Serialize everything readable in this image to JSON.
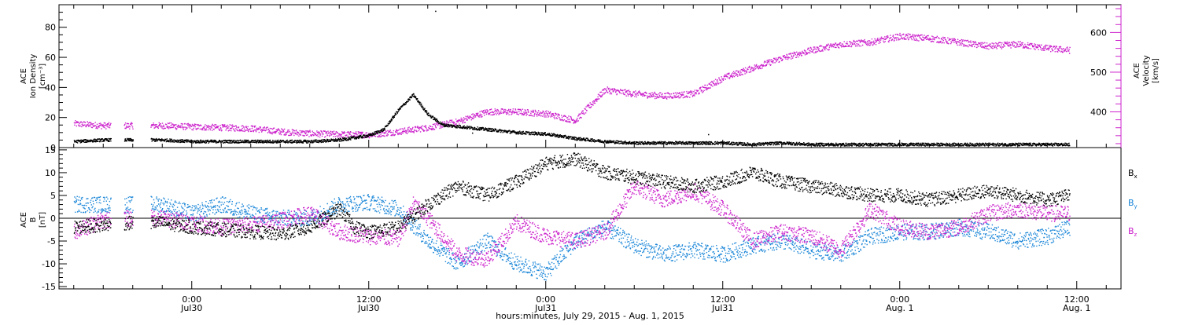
{
  "chart_data": [
    {
      "type": "scatter",
      "panel": "top",
      "ylabel_left": [
        "ACE",
        "Ion Density",
        "[cm⁻³]"
      ],
      "ylabel_right": [
        "ACE",
        "Velocity",
        "[km/s]"
      ],
      "y_left_ticks": [
        "0",
        "20",
        "40",
        "60",
        "80"
      ],
      "y_left_lim": [
        0,
        95
      ],
      "y_right_ticks": [
        "400",
        "500",
        "600"
      ],
      "y_right_lim": [
        310,
        670
      ],
      "colors": {
        "density": "#000000",
        "velocity": "#cc22cc"
      },
      "series": [
        {
          "name": "Ion Density",
          "axis": "left",
          "points": [
            [
              -8,
              4
            ],
            [
              -6,
              5
            ],
            [
              -4,
              5
            ],
            [
              -2,
              5
            ],
            [
              0,
              4
            ],
            [
              2,
              4
            ],
            [
              4,
              4
            ],
            [
              6,
              4
            ],
            [
              8,
              4
            ],
            [
              10,
              5
            ],
            [
              12,
              8
            ],
            [
              13,
              12
            ],
            [
              14,
              25
            ],
            [
              15,
              35
            ],
            [
              16,
              22
            ],
            [
              17,
              15
            ],
            [
              18,
              14
            ],
            [
              20,
              12
            ],
            [
              22,
              10
            ],
            [
              24,
              9
            ],
            [
              26,
              6
            ],
            [
              28,
              4
            ],
            [
              30,
              3
            ],
            [
              34,
              3
            ],
            [
              36,
              3
            ],
            [
              38,
              2
            ],
            [
              40,
              3
            ],
            [
              42,
              2
            ],
            [
              44,
              2
            ],
            [
              46,
              2
            ],
            [
              48,
              2
            ],
            [
              50,
              2
            ],
            [
              52,
              2
            ],
            [
              54,
              2
            ],
            [
              56,
              2
            ],
            [
              58,
              2
            ],
            [
              59.5,
              2
            ]
          ],
          "outliers": [
            [
              16.5,
              91
            ],
            [
              19,
              10
            ],
            [
              35,
              9
            ]
          ]
        },
        {
          "name": "Velocity",
          "axis": "right",
          "points": [
            [
              -8,
              370
            ],
            [
              -6,
              365
            ],
            [
              -4,
              365
            ],
            [
              -2,
              365
            ],
            [
              0,
              362
            ],
            [
              2,
              360
            ],
            [
              4,
              358
            ],
            [
              6,
              350
            ],
            [
              8,
              345
            ],
            [
              10,
              343
            ],
            [
              12,
              342
            ],
            [
              14,
              350
            ],
            [
              16,
              360
            ],
            [
              18,
              375
            ],
            [
              20,
              400
            ],
            [
              22,
              400
            ],
            [
              24,
              395
            ],
            [
              26,
              378
            ],
            [
              28,
              455
            ],
            [
              30,
              445
            ],
            [
              32,
              440
            ],
            [
              34,
              445
            ],
            [
              36,
              485
            ],
            [
              38,
              510
            ],
            [
              40,
              535
            ],
            [
              42,
              555
            ],
            [
              44,
              570
            ],
            [
              46,
              575
            ],
            [
              48,
              590
            ],
            [
              50,
              585
            ],
            [
              52,
              575
            ],
            [
              54,
              565
            ],
            [
              56,
              570
            ],
            [
              58,
              560
            ],
            [
              59.5,
              555
            ]
          ]
        }
      ]
    },
    {
      "type": "scatter",
      "panel": "bottom",
      "ylabel": [
        "ACE",
        "B",
        "[nT]"
      ],
      "y_ticks": [
        "-15",
        "-10",
        "-5",
        "0",
        "5",
        "10",
        "15"
      ],
      "y_lim": [
        -15.5,
        15.5
      ],
      "legend": [
        {
          "label": "B",
          "sub": "x",
          "color": "#000000"
        },
        {
          "label": "B",
          "sub": "y",
          "color": "#1a86d8"
        },
        {
          "label": "B",
          "sub": "z",
          "color": "#cc22cc"
        }
      ],
      "series": [
        {
          "name": "Bx",
          "points": [
            [
              -8,
              -2
            ],
            [
              -6,
              -1.5
            ],
            [
              -4,
              -1
            ],
            [
              -2,
              -1
            ],
            [
              0,
              -2
            ],
            [
              2,
              -2.5
            ],
            [
              4,
              -3
            ],
            [
              6,
              -3.5
            ],
            [
              8,
              -2
            ],
            [
              10,
              2
            ],
            [
              11,
              -2
            ],
            [
              12,
              -3
            ],
            [
              14,
              -2
            ],
            [
              16,
              3
            ],
            [
              18,
              7
            ],
            [
              20,
              5
            ],
            [
              22,
              8
            ],
            [
              24,
              12
            ],
            [
              26,
              13
            ],
            [
              28,
              10
            ],
            [
              30,
              9
            ],
            [
              32,
              8
            ],
            [
              34,
              7
            ],
            [
              36,
              8
            ],
            [
              38,
              10
            ],
            [
              40,
              8
            ],
            [
              42,
              7
            ],
            [
              44,
              6
            ],
            [
              46,
              5
            ],
            [
              48,
              5
            ],
            [
              50,
              4
            ],
            [
              52,
              5
            ],
            [
              54,
              6
            ],
            [
              56,
              5
            ],
            [
              58,
              4
            ],
            [
              59.5,
              5
            ]
          ]
        },
        {
          "name": "By",
          "points": [
            [
              -8,
              3
            ],
            [
              -6,
              3
            ],
            [
              -4,
              3
            ],
            [
              -2,
              3
            ],
            [
              0,
              1
            ],
            [
              2,
              3
            ],
            [
              4,
              1
            ],
            [
              6,
              0
            ],
            [
              8,
              0
            ],
            [
              10,
              3
            ],
            [
              12,
              3.5
            ],
            [
              14,
              2
            ],
            [
              16,
              -5
            ],
            [
              18,
              -10
            ],
            [
              20,
              -5
            ],
            [
              22,
              -10
            ],
            [
              24,
              -12
            ],
            [
              26,
              -5
            ],
            [
              28,
              -2
            ],
            [
              30,
              -6
            ],
            [
              32,
              -8
            ],
            [
              34,
              -7
            ],
            [
              36,
              -8
            ],
            [
              38,
              -6
            ],
            [
              40,
              -5
            ],
            [
              42,
              -7
            ],
            [
              44,
              -8
            ],
            [
              46,
              -4
            ],
            [
              48,
              -3
            ],
            [
              50,
              -3
            ],
            [
              52,
              -2
            ],
            [
              54,
              -3
            ],
            [
              56,
              -5
            ],
            [
              58,
              -4
            ],
            [
              59.5,
              -2
            ]
          ]
        },
        {
          "name": "Bz",
          "points": [
            [
              -8,
              -3
            ],
            [
              -6,
              -0.5
            ],
            [
              -4,
              0
            ],
            [
              -2,
              0
            ],
            [
              0,
              -1
            ],
            [
              2,
              -2
            ],
            [
              4,
              -1.5
            ],
            [
              6,
              -0.5
            ],
            [
              8,
              1
            ],
            [
              10,
              -3
            ],
            [
              12,
              -4
            ],
            [
              14,
              -4.5
            ],
            [
              15,
              3
            ],
            [
              16,
              0
            ],
            [
              18,
              -8
            ],
            [
              20,
              -9
            ],
            [
              22,
              -1
            ],
            [
              24,
              -4
            ],
            [
              26,
              -5
            ],
            [
              28,
              -3
            ],
            [
              30,
              7
            ],
            [
              32,
              4
            ],
            [
              34,
              6
            ],
            [
              36,
              2
            ],
            [
              38,
              -5
            ],
            [
              40,
              -3
            ],
            [
              42,
              -4
            ],
            [
              44,
              -7
            ],
            [
              46,
              2
            ],
            [
              48,
              -2
            ],
            [
              50,
              -3
            ],
            [
              52,
              -2
            ],
            [
              54,
              1
            ],
            [
              56,
              2
            ],
            [
              58,
              1
            ],
            [
              59.5,
              1
            ]
          ]
        }
      ]
    }
  ],
  "x_axis": {
    "range_hours": [
      -9,
      63
    ],
    "major_ticks": [
      {
        "hour": 0,
        "time": "0:00",
        "date": "Jul30"
      },
      {
        "hour": 12,
        "time": "12:00",
        "date": "Jul30"
      },
      {
        "hour": 24,
        "time": "0:00",
        "date": "Jul31"
      },
      {
        "hour": 36,
        "time": "12:00",
        "date": "Jul31"
      },
      {
        "hour": 48,
        "time": "0:00",
        "date": "Aug. 1"
      },
      {
        "hour": 60,
        "time": "12:00",
        "date": "Aug. 1"
      }
    ],
    "xlabel": "hours:minutes, July 29, 2015 - Aug. 1, 2015"
  }
}
